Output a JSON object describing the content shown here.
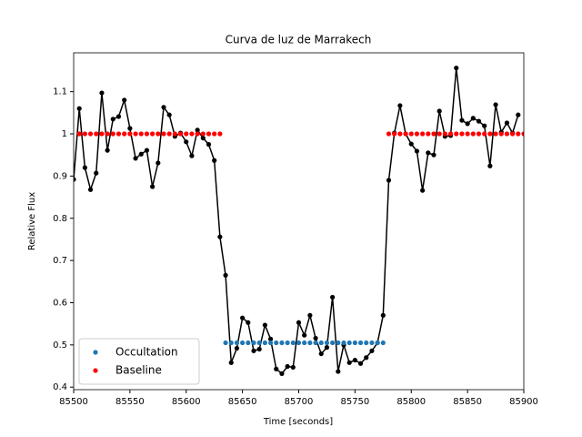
{
  "chart_data": {
    "type": "scatter-line",
    "title": "Curva de luz de Marrakech",
    "xlabel": "Time [seconds]",
    "ylabel": "Relative Flux",
    "xlim": [
      85500,
      85900
    ],
    "ylim": [
      0.394,
      1.192
    ],
    "xticks": [
      85500,
      85550,
      85600,
      85650,
      85700,
      85750,
      85800,
      85850,
      85900
    ],
    "yticks": [
      0.4,
      0.5,
      0.6,
      0.7,
      0.8,
      0.9,
      1.0,
      1.1
    ],
    "legend": "lower left",
    "series": [
      {
        "color": "#000000",
        "line": true,
        "x": [
          85500,
          85505,
          85510,
          85515,
          85520,
          85525,
          85530,
          85535,
          85540,
          85545,
          85550,
          85555,
          85560,
          85565,
          85570,
          85575,
          85580,
          85585,
          85590,
          85595,
          85600,
          85605,
          85610,
          85615,
          85620,
          85625,
          85630,
          85635,
          85640,
          85645,
          85650,
          85655,
          85660,
          85665,
          85670,
          85675,
          85680,
          85685,
          85690,
          85695,
          85700,
          85705,
          85710,
          85715,
          85720,
          85725,
          85730,
          85735,
          85740,
          85745,
          85750,
          85755,
          85760,
          85765,
          85770,
          85775,
          85780,
          85785,
          85790,
          85795,
          85800,
          85805,
          85810,
          85815,
          85820,
          85825,
          85830,
          85835,
          85840,
          85845,
          85850,
          85855,
          85860,
          85865,
          85870,
          85875,
          85880,
          85885,
          85890,
          85895
        ],
        "values": [
          0.892,
          1.06,
          0.92,
          0.868,
          0.907,
          1.097,
          0.961,
          1.035,
          1.041,
          1.08,
          1.013,
          0.942,
          0.952,
          0.961,
          0.875,
          0.931,
          1.063,
          1.045,
          0.994,
          1.002,
          0.981,
          0.948,
          1.009,
          0.99,
          0.975,
          0.937,
          0.756,
          0.665,
          0.458,
          0.492,
          0.564,
          0.553,
          0.486,
          0.49,
          0.547,
          0.514,
          0.443,
          0.432,
          0.449,
          0.447,
          0.553,
          0.523,
          0.57,
          0.516,
          0.479,
          0.494,
          0.613,
          0.437,
          0.5,
          0.458,
          0.464,
          0.456,
          0.47,
          0.486,
          0.505,
          0.57,
          0.89,
          1.002,
          1.067,
          1.0,
          0.976,
          0.959,
          0.866,
          0.955,
          0.95,
          1.054,
          0.994,
          0.996,
          1.156,
          1.032,
          1.024,
          1.037,
          1.03,
          1.019,
          0.924,
          1.069,
          1.004,
          1.026,
          1.002,
          1.045
        ]
      },
      {
        "name": "Occultation",
        "color": "#1f77b4",
        "line": false,
        "x": [
          85635,
          85640,
          85645,
          85650,
          85655,
          85660,
          85665,
          85670,
          85675,
          85680,
          85685,
          85690,
          85695,
          85700,
          85705,
          85710,
          85715,
          85720,
          85725,
          85730,
          85735,
          85740,
          85745,
          85750,
          85755,
          85760,
          85765,
          85770,
          85775
        ],
        "values": [
          0.505,
          0.505,
          0.505,
          0.505,
          0.505,
          0.505,
          0.505,
          0.505,
          0.505,
          0.505,
          0.505,
          0.505,
          0.505,
          0.505,
          0.505,
          0.505,
          0.505,
          0.505,
          0.505,
          0.505,
          0.505,
          0.505,
          0.505,
          0.505,
          0.505,
          0.505,
          0.505,
          0.505,
          0.505
        ]
      },
      {
        "name": "Baseline",
        "color": "#ff0000",
        "line": false,
        "x": [
          85505,
          85510,
          85515,
          85520,
          85525,
          85530,
          85535,
          85540,
          85545,
          85550,
          85555,
          85560,
          85565,
          85570,
          85575,
          85580,
          85585,
          85590,
          85595,
          85600,
          85605,
          85610,
          85615,
          85620,
          85625,
          85630,
          85780,
          85785,
          85790,
          85795,
          85800,
          85805,
          85810,
          85815,
          85820,
          85825,
          85830,
          85835,
          85840,
          85845,
          85850,
          85855,
          85860,
          85865,
          85870,
          85875,
          85880,
          85885,
          85890,
          85895,
          85900
        ],
        "values": [
          1.0,
          1.0,
          1.0,
          1.0,
          1.0,
          1.0,
          1.0,
          1.0,
          1.0,
          1.0,
          1.0,
          1.0,
          1.0,
          1.0,
          1.0,
          1.0,
          1.0,
          1.0,
          1.0,
          1.0,
          1.0,
          1.0,
          1.0,
          1.0,
          1.0,
          1.0,
          1.0,
          1.0,
          1.0,
          1.0,
          1.0,
          1.0,
          1.0,
          1.0,
          1.0,
          1.0,
          1.0,
          1.0,
          1.0,
          1.0,
          1.0,
          1.0,
          1.0,
          1.0,
          1.0,
          1.0,
          1.0,
          1.0,
          1.0,
          1.0,
          1.0
        ]
      }
    ]
  }
}
